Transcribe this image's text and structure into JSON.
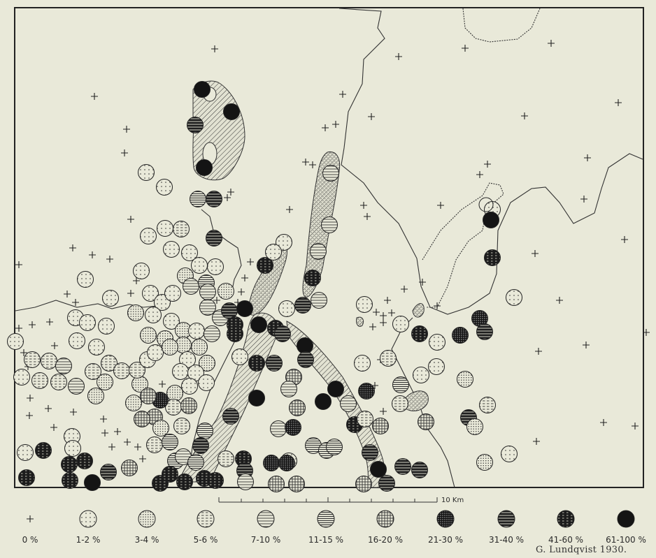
{
  "colors": {
    "background": "#e9e9d9",
    "ink": "#222222",
    "hatch_fill": "#d8d8c8"
  },
  "map": {
    "symbol_legend": [
      {
        "key": "c0",
        "label": "0 %",
        "symbol": "plus"
      },
      {
        "key": "c1",
        "label": "1-2 %",
        "symbol": "circle-dotted-sparse"
      },
      {
        "key": "c2",
        "label": "3-4 %",
        "symbol": "circle-dotted-dense"
      },
      {
        "key": "c3",
        "label": "5-6 %",
        "symbol": "circle-dashed-lines"
      },
      {
        "key": "c4",
        "label": "7-10 %",
        "symbol": "circle-horizontal-lines"
      },
      {
        "key": "c5",
        "label": "11-15 %",
        "symbol": "circle-dense-horizontal-lines"
      },
      {
        "key": "c6",
        "label": "16-20 %",
        "symbol": "circle-crosshatch"
      },
      {
        "key": "c7",
        "label": "21-30 %",
        "symbol": "circle-dense-crosshatch"
      },
      {
        "key": "c8",
        "label": "31-40 %",
        "symbol": "circle-dark-lines"
      },
      {
        "key": "c9",
        "label": "41-60 %",
        "symbol": "circle-near-black"
      },
      {
        "key": "c10",
        "label": "61-100 %",
        "symbol": "circle-black"
      }
    ],
    "scale_bar": {
      "label": "10 Km"
    },
    "signature": "G. Lundqvist 1930."
  }
}
